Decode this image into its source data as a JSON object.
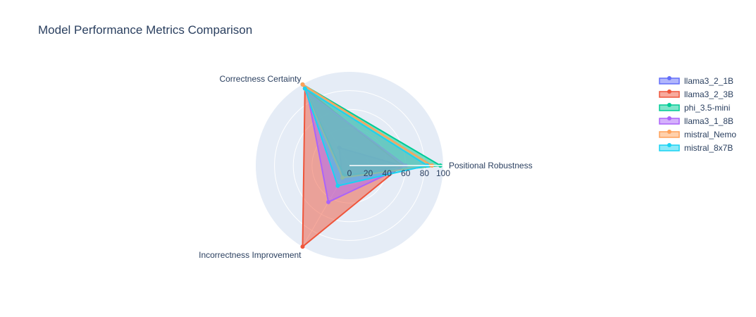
{
  "chart_data": {
    "type": "radar",
    "title": "Model Performance Metrics Comparison",
    "axes": [
      "Positional Robustness",
      "Correctness Certainty",
      "Incorrectness Improvement"
    ],
    "radial_range": [
      0,
      100
    ],
    "radial_ticks": [
      "0",
      "20",
      "40",
      "60",
      "80",
      "100"
    ],
    "legend_position": "top-right",
    "series": [
      {
        "name": "llama3_2_1B",
        "color": "#636efa",
        "values": [
          55,
          22,
          15
        ]
      },
      {
        "name": "llama3_2_3B",
        "color": "#ef553b",
        "values": [
          56,
          95,
          100
        ]
      },
      {
        "name": "phi_3.5-mini",
        "color": "#00cc96",
        "values": [
          97,
          100,
          12
        ]
      },
      {
        "name": "llama3_1_8B",
        "color": "#ab63fa",
        "values": [
          60,
          90,
          45
        ]
      },
      {
        "name": "mistral_Nemo",
        "color": "#ffa15a",
        "values": [
          88,
          100,
          15
        ]
      },
      {
        "name": "mistral_8x7B",
        "color": "#19d3f3",
        "values": [
          83,
          95,
          25
        ]
      }
    ]
  }
}
